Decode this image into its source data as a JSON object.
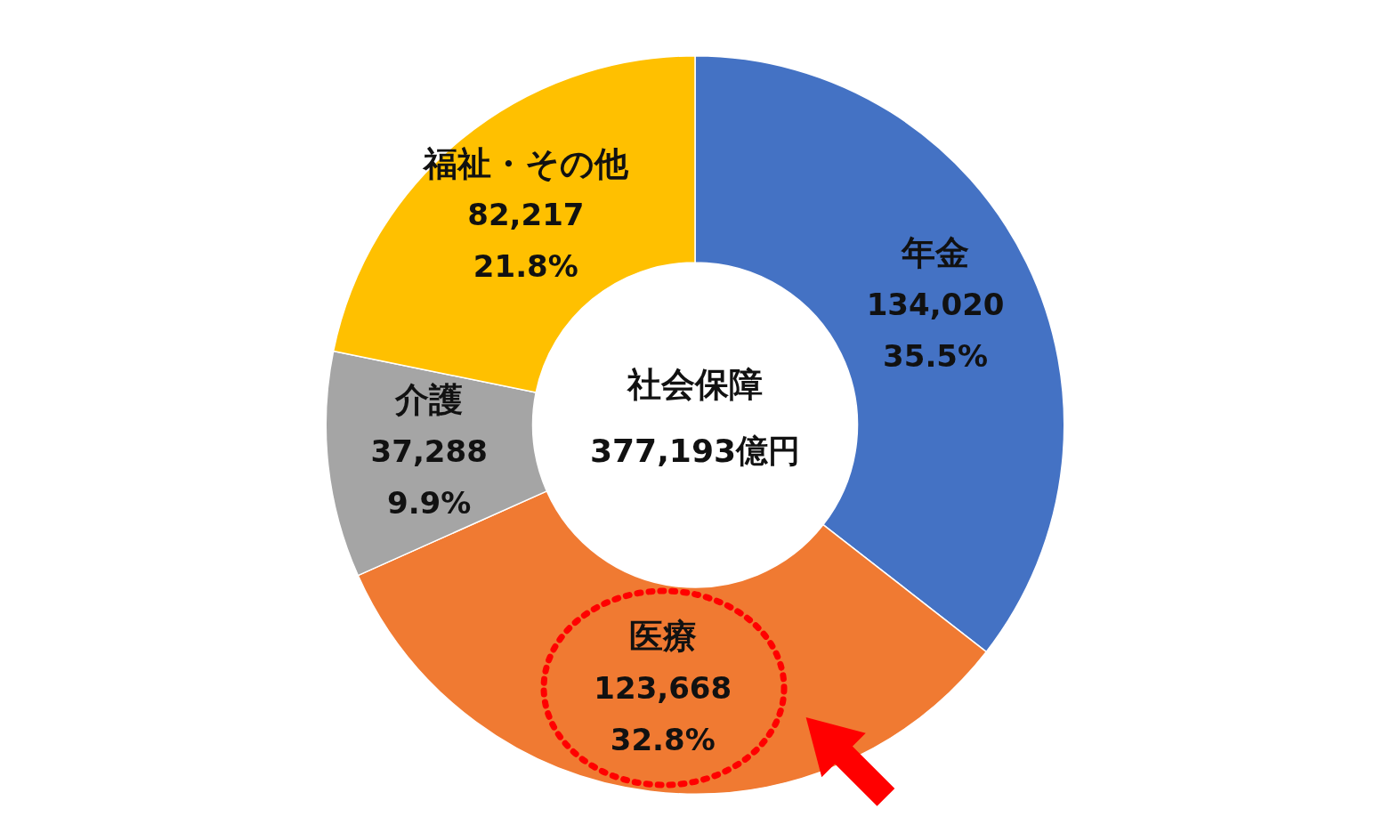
{
  "chart_data": {
    "type": "donut",
    "title": "社会保障",
    "subtitle": "377,193億円",
    "categories": [
      "年金",
      "医療",
      "介護",
      "福祉・その他"
    ],
    "values": [
      134020,
      123668,
      37288,
      82217
    ],
    "colors": [
      "#4472c4",
      "#f07a32",
      "#a5a5a5",
      "#ffc000"
    ],
    "value_labels": [
      "134,020\n35.5%",
      "123,668\n32.8%",
      "37,288\n9.9%",
      "82,217\n21.8%"
    ],
    "legend": false
  }
}
